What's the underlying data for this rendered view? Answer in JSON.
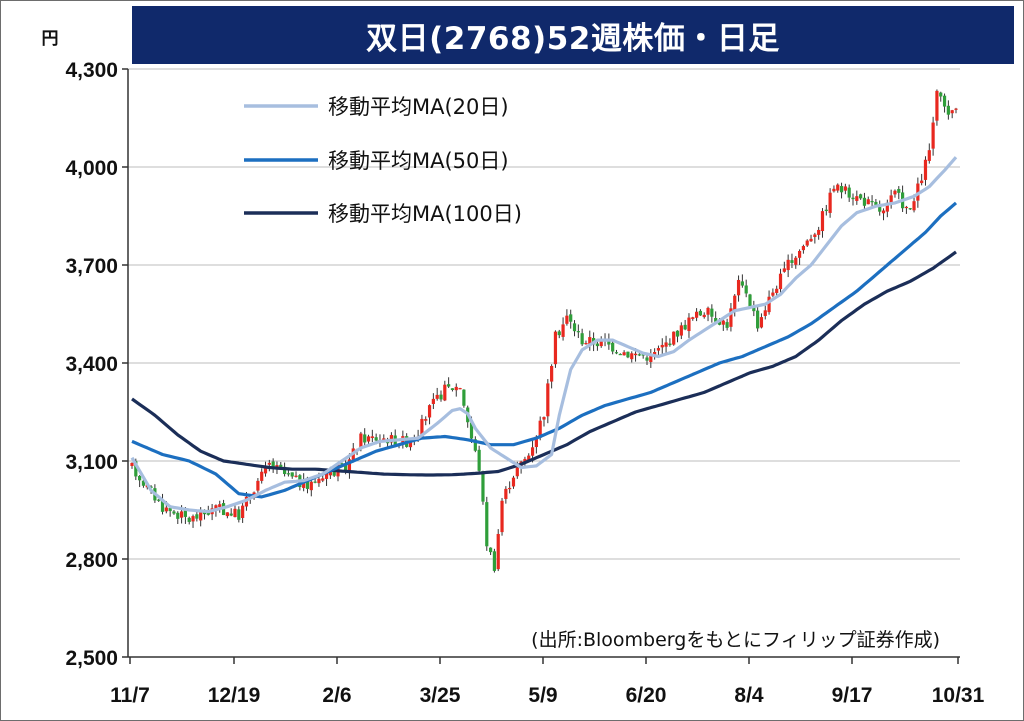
{
  "title": "双日(2768)52週株価・日足",
  "chart_data": {
    "type": "candlestick",
    "title": "双日(2768)52週株価・日足",
    "y_unit": "円",
    "ylim": [
      2500,
      4300
    ],
    "yticks": [
      2500,
      2800,
      3100,
      3400,
      3700,
      4000,
      4300
    ],
    "ytick_labels": [
      "2,500",
      "2,800",
      "3,100",
      "3,400",
      "3,700",
      "4,000",
      "4,300"
    ],
    "xticks": [
      "11/7",
      "12/19",
      "2/6",
      "3/25",
      "5/9",
      "6/20",
      "8/4",
      "9/17",
      "10/31"
    ],
    "grid": "horizontal",
    "legend_position": "top-left",
    "colors": {
      "up": "#e8281f",
      "down": "#2f9e3a",
      "ma20": "#a7bedf",
      "ma50": "#1c6fc0",
      "ma100": "#1b2e58",
      "title_bg": "#10296b"
    },
    "series": [
      {
        "name": "移動平均MA(20日)",
        "style": "ma20"
      },
      {
        "name": "移動平均MA(50日)",
        "style": "ma50"
      },
      {
        "name": "移動平均MA(100日)",
        "style": "ma100"
      }
    ],
    "trend_anchors": [
      {
        "i": 0,
        "p": 3080
      },
      {
        "i": 8,
        "p": 2960
      },
      {
        "i": 15,
        "p": 2920
      },
      {
        "i": 22,
        "p": 2955
      },
      {
        "i": 28,
        "p": 2935
      },
      {
        "i": 32,
        "p": 3020
      },
      {
        "i": 36,
        "p": 3090
      },
      {
        "i": 40,
        "p": 3060
      },
      {
        "i": 46,
        "p": 3020
      },
      {
        "i": 50,
        "p": 3060
      },
      {
        "i": 56,
        "p": 3080
      },
      {
        "i": 60,
        "p": 3170
      },
      {
        "i": 66,
        "p": 3170
      },
      {
        "i": 72,
        "p": 3160
      },
      {
        "i": 75,
        "p": 3190
      },
      {
        "i": 78,
        "p": 3260
      },
      {
        "i": 82,
        "p": 3320
      },
      {
        "i": 86,
        "p": 3330
      },
      {
        "i": 89,
        "p": 3170
      },
      {
        "i": 91,
        "p": 3080
      },
      {
        "i": 93,
        "p": 2850
      },
      {
        "i": 95,
        "p": 2780
      },
      {
        "i": 97,
        "p": 2980
      },
      {
        "i": 100,
        "p": 3060
      },
      {
        "i": 104,
        "p": 3120
      },
      {
        "i": 108,
        "p": 3250
      },
      {
        "i": 111,
        "p": 3480
      },
      {
        "i": 114,
        "p": 3540
      },
      {
        "i": 118,
        "p": 3470
      },
      {
        "i": 124,
        "p": 3460
      },
      {
        "i": 130,
        "p": 3430
      },
      {
        "i": 136,
        "p": 3420
      },
      {
        "i": 140,
        "p": 3460
      },
      {
        "i": 146,
        "p": 3530
      },
      {
        "i": 150,
        "p": 3560
      },
      {
        "i": 153,
        "p": 3540
      },
      {
        "i": 156,
        "p": 3520
      },
      {
        "i": 159,
        "p": 3640
      },
      {
        "i": 161,
        "p": 3620
      },
      {
        "i": 164,
        "p": 3520
      },
      {
        "i": 168,
        "p": 3620
      },
      {
        "i": 172,
        "p": 3700
      },
      {
        "i": 176,
        "p": 3760
      },
      {
        "i": 180,
        "p": 3820
      },
      {
        "i": 184,
        "p": 3940
      },
      {
        "i": 188,
        "p": 3920
      },
      {
        "i": 193,
        "p": 3890
      },
      {
        "i": 197,
        "p": 3860
      },
      {
        "i": 200,
        "p": 3920
      },
      {
        "i": 204,
        "p": 3860
      },
      {
        "i": 207,
        "p": 3970
      },
      {
        "i": 209,
        "p": 4050
      },
      {
        "i": 211,
        "p": 4220
      },
      {
        "i": 213,
        "p": 4180
      },
      {
        "i": 215,
        "p": 4160
      },
      {
        "i": 216,
        "p": 4190
      }
    ],
    "ma20": [
      [
        0,
        3110
      ],
      [
        5,
        3010
      ],
      [
        10,
        2960
      ],
      [
        15,
        2950
      ],
      [
        20,
        2945
      ],
      [
        25,
        2960
      ],
      [
        30,
        2980
      ],
      [
        35,
        3010
      ],
      [
        40,
        3035
      ],
      [
        45,
        3040
      ],
      [
        50,
        3060
      ],
      [
        55,
        3100
      ],
      [
        60,
        3140
      ],
      [
        65,
        3160
      ],
      [
        70,
        3165
      ],
      [
        75,
        3170
      ],
      [
        80,
        3215
      ],
      [
        84,
        3255
      ],
      [
        86,
        3260
      ],
      [
        88,
        3245
      ],
      [
        90,
        3200
      ],
      [
        94,
        3140
      ],
      [
        98,
        3110
      ],
      [
        102,
        3080
      ],
      [
        106,
        3085
      ],
      [
        110,
        3120
      ],
      [
        112,
        3240
      ],
      [
        115,
        3380
      ],
      [
        118,
        3440
      ],
      [
        122,
        3470
      ],
      [
        126,
        3470
      ],
      [
        130,
        3450
      ],
      [
        134,
        3430
      ],
      [
        138,
        3420
      ],
      [
        142,
        3435
      ],
      [
        146,
        3470
      ],
      [
        150,
        3500
      ],
      [
        154,
        3530
      ],
      [
        158,
        3560
      ],
      [
        162,
        3570
      ],
      [
        166,
        3580
      ],
      [
        170,
        3610
      ],
      [
        174,
        3660
      ],
      [
        178,
        3700
      ],
      [
        182,
        3760
      ],
      [
        186,
        3820
      ],
      [
        190,
        3860
      ],
      [
        195,
        3880
      ],
      [
        200,
        3890
      ],
      [
        205,
        3910
      ],
      [
        209,
        3940
      ],
      [
        213,
        3990
      ],
      [
        216,
        4030
      ]
    ],
    "ma50": [
      [
        0,
        3160
      ],
      [
        8,
        3120
      ],
      [
        15,
        3100
      ],
      [
        22,
        3060
      ],
      [
        28,
        3000
      ],
      [
        34,
        2990
      ],
      [
        40,
        3010
      ],
      [
        46,
        3040
      ],
      [
        52,
        3070
      ],
      [
        58,
        3100
      ],
      [
        64,
        3130
      ],
      [
        70,
        3150
      ],
      [
        76,
        3170
      ],
      [
        82,
        3175
      ],
      [
        88,
        3165
      ],
      [
        94,
        3150
      ],
      [
        100,
        3150
      ],
      [
        106,
        3170
      ],
      [
        112,
        3200
      ],
      [
        118,
        3240
      ],
      [
        124,
        3270
      ],
      [
        130,
        3290
      ],
      [
        136,
        3310
      ],
      [
        142,
        3340
      ],
      [
        148,
        3370
      ],
      [
        154,
        3400
      ],
      [
        160,
        3420
      ],
      [
        166,
        3450
      ],
      [
        172,
        3480
      ],
      [
        178,
        3520
      ],
      [
        184,
        3570
      ],
      [
        190,
        3620
      ],
      [
        196,
        3680
      ],
      [
        202,
        3740
      ],
      [
        208,
        3800
      ],
      [
        212,
        3850
      ],
      [
        216,
        3890
      ]
    ],
    "ma100": [
      [
        0,
        3290
      ],
      [
        6,
        3240
      ],
      [
        12,
        3180
      ],
      [
        18,
        3130
      ],
      [
        24,
        3100
      ],
      [
        30,
        3090
      ],
      [
        36,
        3080
      ],
      [
        42,
        3075
      ],
      [
        48,
        3075
      ],
      [
        54,
        3070
      ],
      [
        60,
        3065
      ],
      [
        66,
        3060
      ],
      [
        72,
        3058
      ],
      [
        78,
        3057
      ],
      [
        84,
        3058
      ],
      [
        90,
        3062
      ],
      [
        96,
        3068
      ],
      [
        102,
        3090
      ],
      [
        108,
        3120
      ],
      [
        114,
        3150
      ],
      [
        120,
        3190
      ],
      [
        126,
        3220
      ],
      [
        132,
        3250
      ],
      [
        138,
        3270
      ],
      [
        144,
        3290
      ],
      [
        150,
        3310
      ],
      [
        156,
        3340
      ],
      [
        162,
        3370
      ],
      [
        168,
        3390
      ],
      [
        174,
        3420
      ],
      [
        180,
        3470
      ],
      [
        186,
        3530
      ],
      [
        192,
        3580
      ],
      [
        198,
        3620
      ],
      [
        204,
        3650
      ],
      [
        210,
        3690
      ],
      [
        216,
        3740
      ]
    ]
  },
  "source": "(出所:Bloombergをもとにフィリップ証券作成)"
}
